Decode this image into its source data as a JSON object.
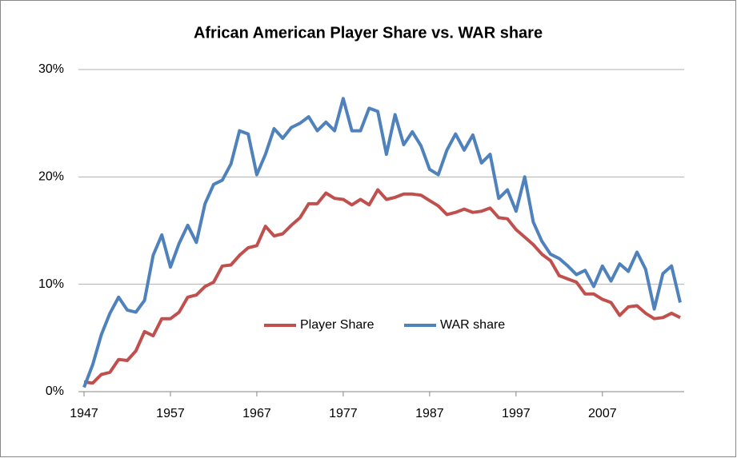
{
  "chart_data": {
    "type": "line",
    "title": "African American Player Share vs. WAR share",
    "x": [
      1947,
      1948,
      1949,
      1950,
      1951,
      1952,
      1953,
      1954,
      1955,
      1956,
      1957,
      1958,
      1959,
      1960,
      1961,
      1962,
      1963,
      1964,
      1965,
      1966,
      1967,
      1968,
      1969,
      1970,
      1971,
      1972,
      1973,
      1974,
      1975,
      1976,
      1977,
      1978,
      1979,
      1980,
      1981,
      1982,
      1983,
      1984,
      1985,
      1986,
      1987,
      1988,
      1989,
      1990,
      1991,
      1992,
      1993,
      1994,
      1995,
      1996,
      1997,
      1998,
      1999,
      2000,
      2001,
      2002,
      2003,
      2004,
      2005,
      2006,
      2007,
      2008,
      2009,
      2010,
      2011,
      2012,
      2013,
      2014,
      2015,
      2016
    ],
    "series": [
      {
        "name": "Player Share",
        "color": "#c0504d",
        "values": [
          0.9,
          0.8,
          1.6,
          1.8,
          3.0,
          2.9,
          3.8,
          5.6,
          5.2,
          6.8,
          6.8,
          7.4,
          8.8,
          9.0,
          9.8,
          10.2,
          11.7,
          11.8,
          12.7,
          13.4,
          13.6,
          15.4,
          14.5,
          14.7,
          15.5,
          16.2,
          17.5,
          17.5,
          18.5,
          18.0,
          17.9,
          17.4,
          17.9,
          17.4,
          18.8,
          17.9,
          18.1,
          18.4,
          18.4,
          18.3,
          17.8,
          17.3,
          16.5,
          16.7,
          17.0,
          16.7,
          16.8,
          17.1,
          16.2,
          16.1,
          15.1,
          14.4,
          13.7,
          12.8,
          12.2,
          10.8,
          10.5,
          10.2,
          9.1,
          9.1,
          8.6,
          8.3,
          7.1,
          7.9,
          8.0,
          7.3,
          6.8,
          6.9,
          7.3,
          6.9
        ]
      },
      {
        "name": "WAR share",
        "color": "#4f81bd",
        "values": [
          0.4,
          2.5,
          5.3,
          7.3,
          8.8,
          7.6,
          7.4,
          8.5,
          12.7,
          14.6,
          11.6,
          13.8,
          15.5,
          13.9,
          17.5,
          19.3,
          19.7,
          21.2,
          24.3,
          24.0,
          20.2,
          22.1,
          24.5,
          23.6,
          24.6,
          25.0,
          25.6,
          24.3,
          25.1,
          24.3,
          27.3,
          24.3,
          24.3,
          26.4,
          26.1,
          22.1,
          25.8,
          23.0,
          24.2,
          22.9,
          20.7,
          20.2,
          22.5,
          24.0,
          22.5,
          23.9,
          21.3,
          22.1,
          18.0,
          18.8,
          16.8,
          20.0,
          15.8,
          14.0,
          12.8,
          12.4,
          11.7,
          10.9,
          11.3,
          9.8,
          11.7,
          10.3,
          11.9,
          11.2,
          13.0,
          11.4,
          7.7,
          11.0,
          11.7,
          8.3
        ]
      }
    ],
    "xlim": [
      1947,
      2016
    ],
    "xticks": [
      1947,
      1957,
      1967,
      1977,
      1987,
      1997,
      2007
    ],
    "ylim": [
      0,
      30
    ],
    "yticks": [
      {
        "value": 0,
        "label": "0%"
      },
      {
        "value": 10,
        "label": "10%"
      },
      {
        "value": 20,
        "label": "20%"
      },
      {
        "value": 30,
        "label": "30%"
      }
    ],
    "grid": true,
    "legend": "center"
  }
}
